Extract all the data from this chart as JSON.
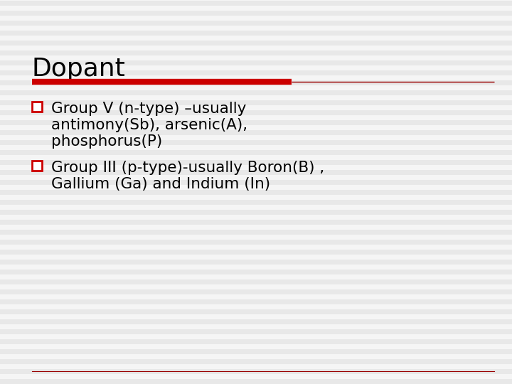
{
  "title": "Dopant",
  "title_fontsize": 26,
  "title_color": "#000000",
  "background_color": "#f0f0f0",
  "divider_thick_color": "#cc0000",
  "divider_thin_color": "#990000",
  "bullet_edge_color": "#cc0000",
  "text_color": "#000000",
  "text_fontsize": 15.5,
  "bullet1_line1": "Group V (n-type) –usually",
  "bullet1_line2": "antimony(Sb), arsenic(A),",
  "bullet1_line3": "phosphorus(P)",
  "bullet2_line1": "Group III (p-type)-usually Boron(B) ,",
  "bullet2_line2": "Gallium (Ga) and Indium (In)",
  "line_color": "#990000",
  "stripe_color": "#e8e8e8",
  "stripe_color2": "#f5f5f5"
}
